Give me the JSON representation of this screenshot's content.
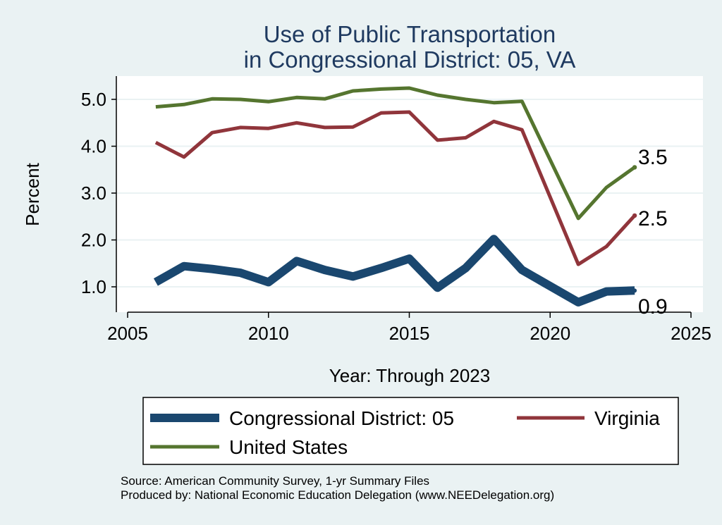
{
  "chart_data": {
    "type": "line",
    "title": [
      "Use of Public Transportation",
      "in Congressional District: 05, VA"
    ],
    "xlabel": "Year: Through 2023",
    "ylabel": "Percent",
    "xlim": [
      2005,
      2025
    ],
    "ylim": [
      0.5,
      5.5
    ],
    "x_ticks": [
      2005,
      2010,
      2015,
      2020,
      2025
    ],
    "y_ticks": [
      1.0,
      2.0,
      3.0,
      4.0,
      5.0
    ],
    "y_tick_labels": [
      "1.0",
      "2.0",
      "3.0",
      "4.0",
      "5.0"
    ],
    "grid": true,
    "legend_position": "bottom",
    "x": [
      2006,
      2007,
      2008,
      2009,
      2010,
      2011,
      2012,
      2013,
      2014,
      2015,
      2016,
      2017,
      2018,
      2019,
      2021,
      2022,
      2023
    ],
    "series": [
      {
        "name": "Congressional District: 05",
        "color": "#1a476f",
        "values": [
          1.1,
          1.44,
          1.38,
          1.3,
          1.1,
          1.55,
          1.36,
          1.22,
          1.4,
          1.6,
          0.98,
          1.4,
          2.02,
          1.36,
          0.67,
          0.9,
          0.92
        ],
        "end_label": "0.9"
      },
      {
        "name": "Virginia",
        "color": "#90353b",
        "values": [
          4.08,
          3.77,
          4.29,
          4.4,
          4.38,
          4.5,
          4.4,
          4.41,
          4.71,
          4.73,
          4.13,
          4.18,
          4.53,
          4.35,
          1.48,
          1.86,
          2.52
        ],
        "end_label": "2.5"
      },
      {
        "name": "United States",
        "color": "#55752f",
        "values": [
          4.84,
          4.89,
          5.01,
          5.0,
          4.95,
          5.04,
          5.01,
          5.18,
          5.22,
          5.24,
          5.09,
          5.0,
          4.93,
          4.96,
          2.46,
          3.12,
          3.55
        ],
        "end_label": "3.5"
      }
    ]
  },
  "source": {
    "line1": "Source: American Community Survey, 1-yr Summary Files",
    "line2": "Produced by: National Economic Education Delegation (www.NEEDelegation.org)"
  }
}
